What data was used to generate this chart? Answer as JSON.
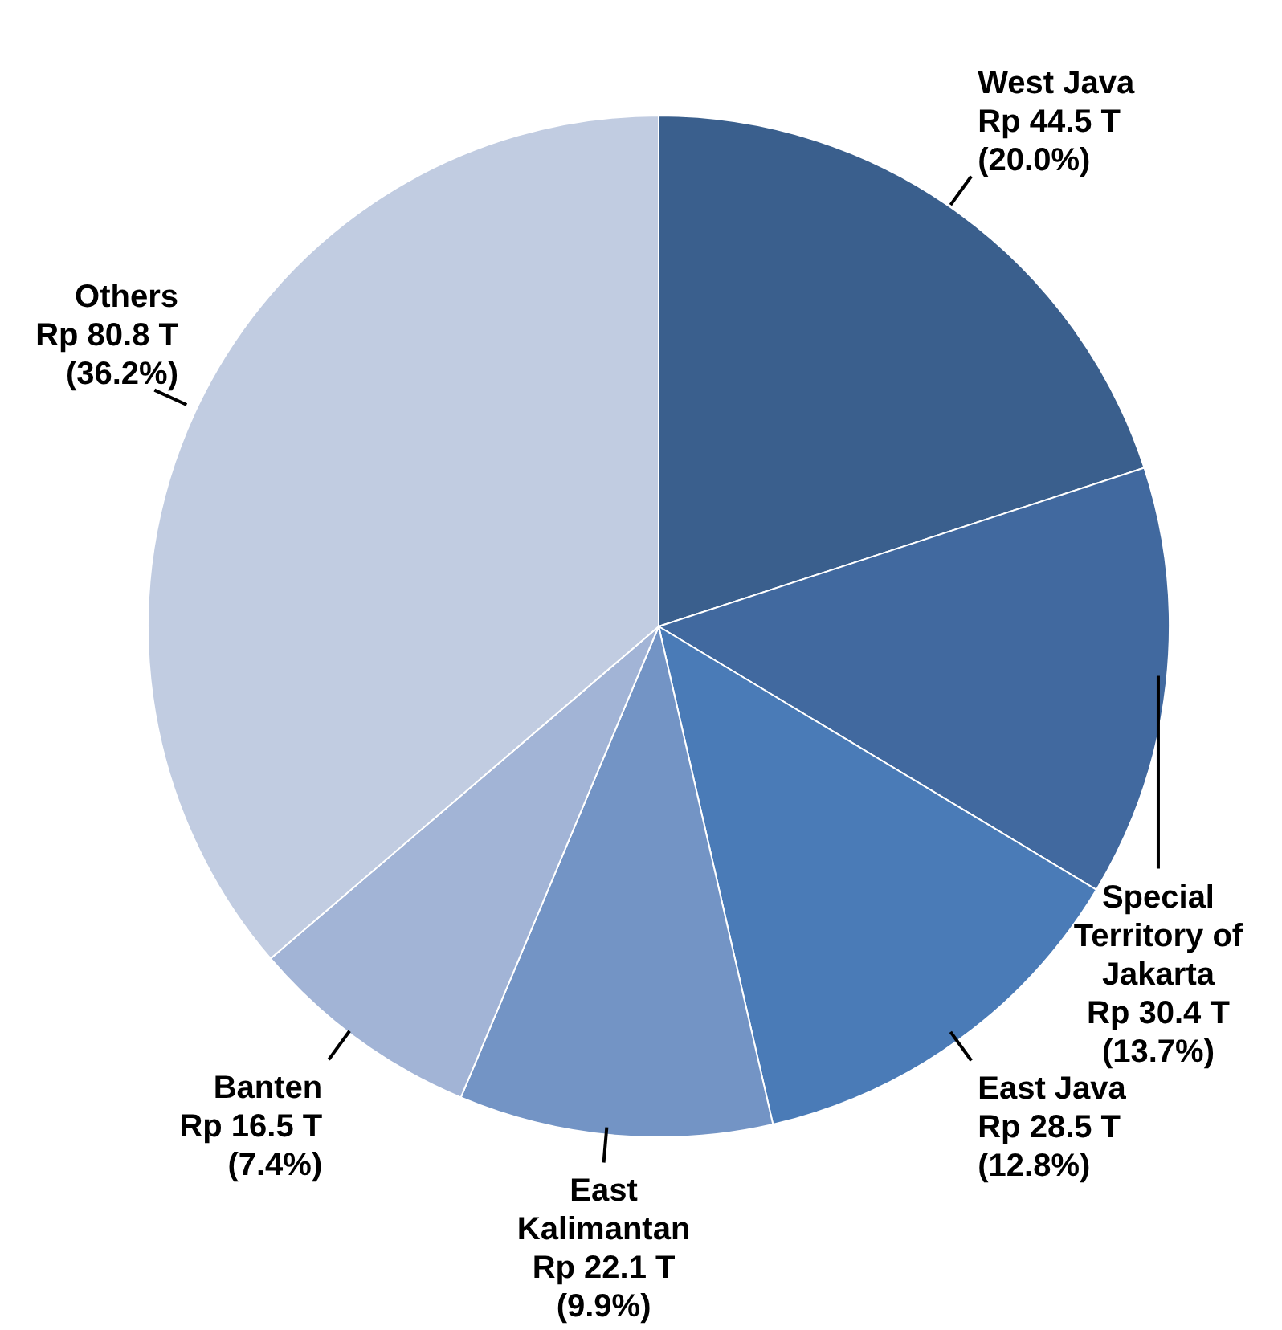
{
  "chart_data": {
    "type": "pie",
    "categories": [
      "West Java",
      "Special Territory of Jakarta",
      "East Java",
      "East Kalimantan",
      "Banten",
      "Others"
    ],
    "values": [
      44.5,
      30.4,
      28.5,
      22.1,
      16.5,
      80.8
    ],
    "colors": [
      "#3a5f8d",
      "#41699f",
      "#4a7bb7",
      "#7394c5",
      "#a2b4d6",
      "#c1cce1"
    ],
    "value_labels": [
      "Rp 44.5 T (20.0%)",
      "Rp 30.4 T (13.7%)",
      "Rp 28.5 T (12.8%)",
      "Rp 22.1 T (9.9%)",
      "Rp 16.5 T (7.4%)",
      "Rp 80.8 T (36.2%)"
    ]
  }
}
